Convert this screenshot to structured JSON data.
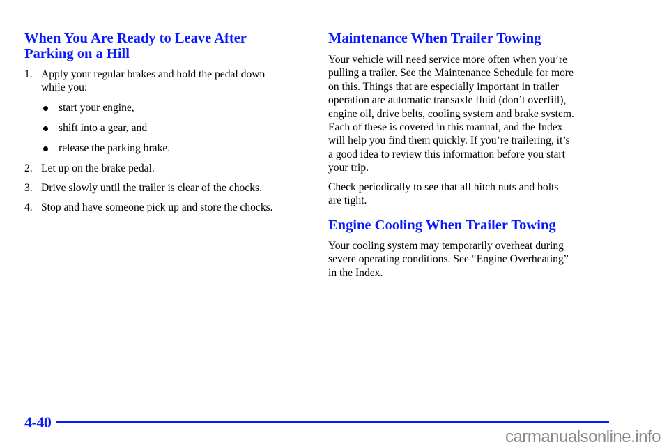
{
  "left": {
    "heading": [
      "When You Are Ready to Leave After",
      "Parking on a Hill"
    ],
    "steps": [
      {
        "num": "1.",
        "lines": [
          "Apply your regular brakes and hold the pedal down",
          "while you:"
        ]
      },
      {
        "num": "2.",
        "lines": [
          "Let up on the brake pedal."
        ]
      },
      {
        "num": "3.",
        "lines": [
          "Drive slowly until the trailer is clear of the chocks."
        ]
      },
      {
        "num": "4.",
        "lines": [
          "Stop and have someone pick up and store the chocks."
        ]
      }
    ],
    "bullets": [
      "start your engine,",
      "shift into a gear, and",
      "release the parking brake."
    ]
  },
  "right": {
    "heading1": "Maintenance When Trailer Towing",
    "para1": [
      "Your vehicle will need service more often when you’re",
      "pulling a trailer. See the Maintenance Schedule for more",
      "on this. Things that are especially important in trailer",
      "operation are automatic transaxle fluid (don’t overfill),",
      "engine oil, drive belts, cooling system and brake system.",
      "Each of these is covered in this manual, and the Index",
      "will help you find them quickly. If you’re trailering, it’s",
      "a good idea to review this information before you start",
      "your trip."
    ],
    "para2": [
      "Check periodically to see that all hitch nuts and bolts",
      "are tight."
    ],
    "heading2": "Engine Cooling When Trailer Towing",
    "para3": [
      "Your cooling system may temporarily overheat during",
      "severe operating conditions. See “Engine Overheating”",
      "in the Index."
    ]
  },
  "footer": {
    "page_number": "4-40",
    "watermark": "carmanualsonline.info",
    "accent_color": "#0a1aff"
  }
}
